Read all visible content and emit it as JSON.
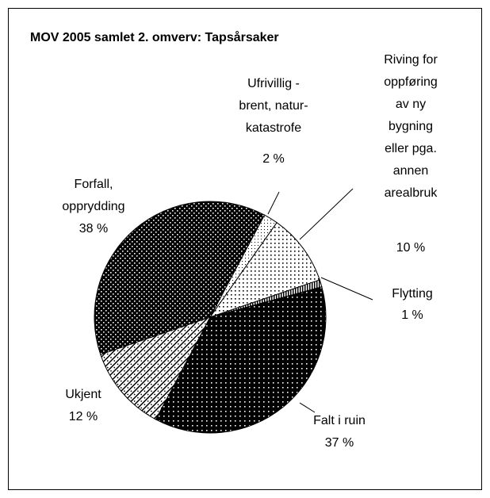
{
  "chart_data": {
    "type": "pie",
    "title": "MOV 2005 samlet 2. omverv: Tapsårsaker",
    "categories": [
      "Ufrivillig -\nbrent, natur-\nkatastrofe",
      "Riving for\noppføring\nav ny\nbygning\neller pga.\nannen\narealbruk",
      "Flytting",
      "Falt i ruin",
      "Ukjent",
      "Forfall,\nopprydding"
    ],
    "values": [
      2,
      10,
      1,
      37,
      12,
      38
    ],
    "value_labels": [
      "2 %",
      "10 %",
      "1 %",
      "37 %",
      "12 %",
      "38 %"
    ]
  }
}
